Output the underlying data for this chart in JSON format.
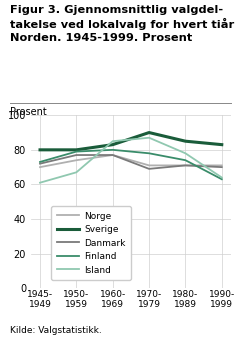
{
  "title_line1": "Figur 3. Gjennomsnittlig valgdel-",
  "title_line2": "takelse ved lokalvalg for hvert tiår i",
  "title_line3": "Norden. 1945-1999. Prosent",
  "ylabel": "Prosent",
  "source": "Kilde: Valgstatistikk.",
  "x_labels": [
    "1945-\n1949",
    "1950-\n1959",
    "1960-\n1969",
    "1970-\n1979",
    "1980-\n1989",
    "1990-\n1999"
  ],
  "x_positions": [
    0,
    1,
    2,
    3,
    4,
    5
  ],
  "ylim": [
    0,
    100
  ],
  "yticks": [
    0,
    20,
    40,
    60,
    80,
    100
  ],
  "series": [
    {
      "name": "Norge",
      "values": [
        70,
        74,
        77,
        71,
        71,
        71
      ],
      "color": "#b0b0b0",
      "linewidth": 1.3
    },
    {
      "name": "Sverige",
      "values": [
        80,
        80,
        83,
        90,
        85,
        83
      ],
      "color": "#1a5c3a",
      "linewidth": 2.2
    },
    {
      "name": "Danmark",
      "values": [
        72,
        77,
        77,
        69,
        71,
        70
      ],
      "color": "#7a7a7a",
      "linewidth": 1.3
    },
    {
      "name": "Finland",
      "values": [
        73,
        79,
        80,
        78,
        74,
        63
      ],
      "color": "#3a8c6a",
      "linewidth": 1.3
    },
    {
      "name": "Island",
      "values": [
        61,
        67,
        85,
        87,
        78,
        64
      ],
      "color": "#90c8b0",
      "linewidth": 1.3
    }
  ]
}
